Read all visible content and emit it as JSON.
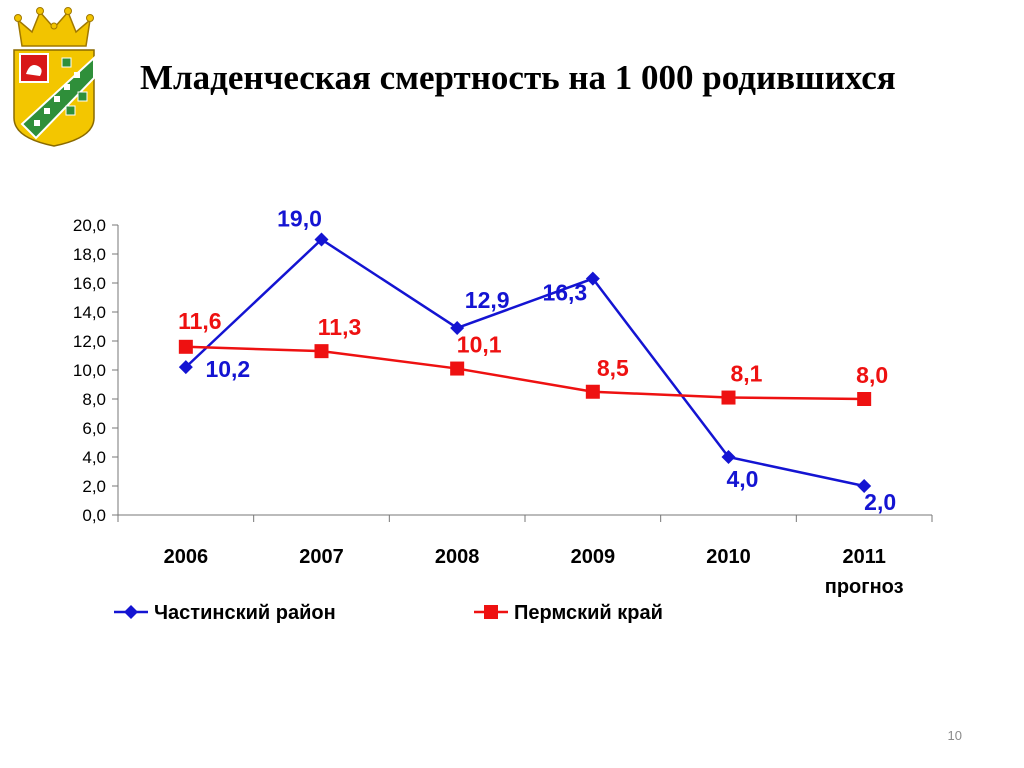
{
  "slide": {
    "title": "Младенческая смертность на 1 000 родившихся",
    "page_number": "10"
  },
  "emblem": {
    "icon": "coat-of-arms-icon"
  },
  "chart_data": {
    "type": "line",
    "categories": [
      "2006",
      "2007",
      "2008",
      "2009",
      "2010",
      "2011"
    ],
    "category_sublabels": [
      "",
      "",
      "",
      "",
      "",
      "прогноз"
    ],
    "series": [
      {
        "name": "Частинский район",
        "values": [
          10.2,
          19.0,
          12.9,
          16.3,
          4.0,
          2.0
        ],
        "labels": [
          "10,2",
          "19,0",
          "12,9",
          "16,3",
          "4,0",
          "2,0"
        ],
        "color": "#1414d2",
        "marker": "diamond"
      },
      {
        "name": "Пермский край",
        "values": [
          11.6,
          11.3,
          10.1,
          8.5,
          8.1,
          8.0
        ],
        "labels": [
          "11,6",
          "11,3",
          "10,1",
          "8,5",
          "8,1",
          "8,0"
        ],
        "color": "#ee1111",
        "marker": "square"
      }
    ],
    "y_ticks": [
      "0,0",
      "2,0",
      "4,0",
      "6,0",
      "8,0",
      "10,0",
      "12,0",
      "14,0",
      "16,0",
      "18,0",
      "20,0"
    ],
    "ylim": [
      0,
      20
    ],
    "grid": false,
    "legend_position": "bottom"
  }
}
